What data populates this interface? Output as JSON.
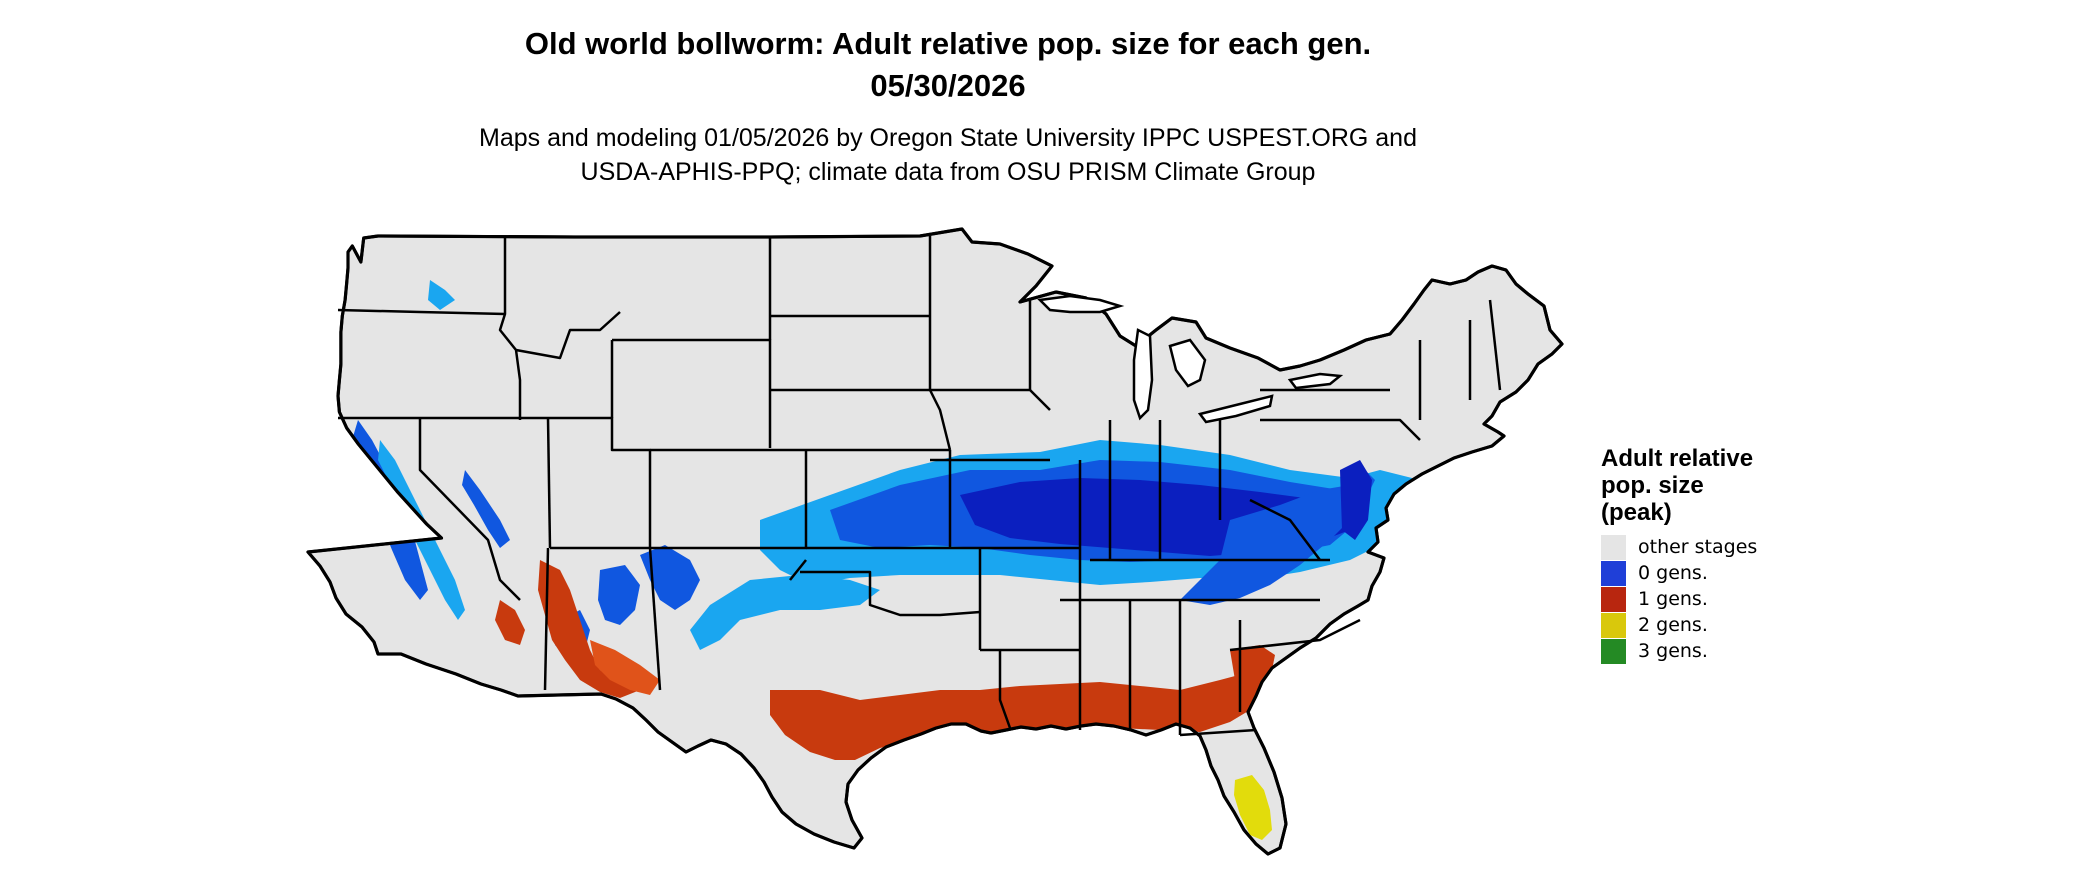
{
  "title_line1": "Old world bollworm: Adult relative pop. size for each gen.",
  "title_line2": "05/30/2026",
  "subtitle_line1": "Maps and modeling 01/05/2026 by Oregon State University IPPC USPEST.ORG and",
  "subtitle_line2": "USDA-APHIS-PPQ; climate data from OSU PRISM Climate Group",
  "legend": {
    "title_lines": [
      "Adult relative",
      "pop. size",
      "(peak)"
    ],
    "items": [
      {
        "label": "other stages",
        "color": "#e5e5e5"
      },
      {
        "label": "0 gens.",
        "color": "#1f3fd8"
      },
      {
        "label": "1 gens.",
        "color": "#b8260f"
      },
      {
        "label": "2 gens.",
        "color": "#d9c80c"
      },
      {
        "label": "3 gens.",
        "color": "#248a24"
      }
    ]
  },
  "colors": {
    "land": "#e5e5e5",
    "border": "#000000",
    "gen0_dark": "#0b1fbf",
    "gen0_mid": "#1057e0",
    "gen0_light": "#1aa6f0",
    "gen1": "#c83a0e",
    "gen1_light": "#e0531a",
    "gen2": "#e2dc0c",
    "gen3": "#35b335"
  }
}
